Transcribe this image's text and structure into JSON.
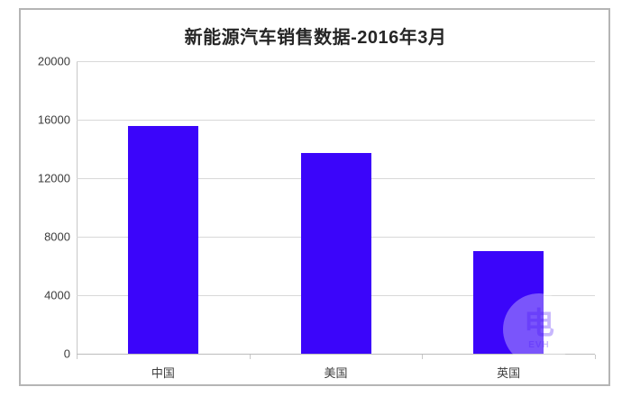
{
  "chart_data": {
    "type": "bar",
    "title": "新能源汽车销售数据-2016年3月",
    "categories": [
      "中国",
      "美国",
      "英国"
    ],
    "values": [
      15600,
      13700,
      7000
    ],
    "xlabel": "",
    "ylabel": "",
    "ylim": [
      0,
      20000
    ],
    "ytick_values": [
      20000,
      16000,
      12000,
      8000,
      4000,
      0
    ],
    "ytick_labels": [
      "20000",
      "16000",
      "12000",
      "8000",
      "4000",
      "0"
    ],
    "grid": true,
    "legend": "none",
    "bar_color": "#3B05FA",
    "gridline_color": "#d8d8d8",
    "axis_color": "#c8c8c8"
  },
  "watermark": {
    "glyph": "电",
    "text": "EVH"
  }
}
